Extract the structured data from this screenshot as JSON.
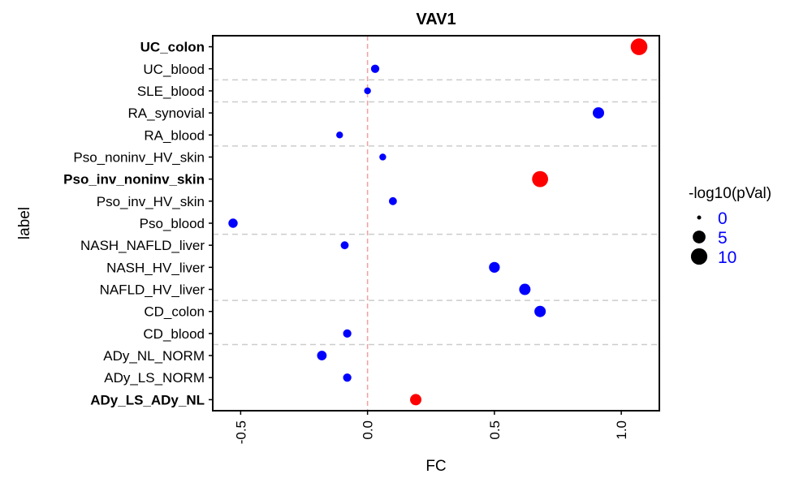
{
  "chart_data": {
    "type": "scatter",
    "title": "VAV1",
    "xlabel": "FC",
    "ylabel": "label",
    "xlim": [
      -0.61,
      1.15
    ],
    "xticks": [
      "-0.5",
      "0.0",
      "0.5",
      "1.0"
    ],
    "xtick_values": [
      -0.5,
      0.0,
      0.5,
      1.0
    ],
    "zero_line": 0,
    "grid": false,
    "points": [
      {
        "label": "UC_colon",
        "fc": 1.07,
        "neglog10p": 10.5,
        "significant": true
      },
      {
        "label": "UC_blood",
        "fc": 0.03,
        "neglog10p": 1.2,
        "significant": false
      },
      {
        "label": "SLE_blood",
        "fc": 0.0,
        "neglog10p": 0.5,
        "significant": false
      },
      {
        "label": "RA_synovial",
        "fc": 0.91,
        "neglog10p": 3.5,
        "significant": false
      },
      {
        "label": "RA_blood",
        "fc": -0.11,
        "neglog10p": 0.5,
        "significant": false
      },
      {
        "label": "Pso_noninv_HV_skin",
        "fc": 0.06,
        "neglog10p": 0.5,
        "significant": false
      },
      {
        "label": "Pso_inv_noninv_skin",
        "fc": 0.68,
        "neglog10p": 9.5,
        "significant": true
      },
      {
        "label": "Pso_inv_HV_skin",
        "fc": 0.1,
        "neglog10p": 1.0,
        "significant": false
      },
      {
        "label": "Pso_blood",
        "fc": -0.53,
        "neglog10p": 1.8,
        "significant": false
      },
      {
        "label": "NASH_NAFLD_liver",
        "fc": -0.09,
        "neglog10p": 1.0,
        "significant": false
      },
      {
        "label": "NASH_HV_liver",
        "fc": 0.5,
        "neglog10p": 3.0,
        "significant": false
      },
      {
        "label": "NAFLD_HV_liver",
        "fc": 0.62,
        "neglog10p": 3.5,
        "significant": false
      },
      {
        "label": "CD_colon",
        "fc": 0.68,
        "neglog10p": 3.5,
        "significant": false
      },
      {
        "label": "CD_blood",
        "fc": -0.08,
        "neglog10p": 1.2,
        "significant": false
      },
      {
        "label": "ADy_NL_NORM",
        "fc": -0.18,
        "neglog10p": 2.0,
        "significant": false
      },
      {
        "label": "ADy_LS_NORM",
        "fc": -0.08,
        "neglog10p": 1.2,
        "significant": false
      },
      {
        "label": "ADy_LS_ADy_NL",
        "fc": 0.19,
        "neglog10p": 3.5,
        "significant": true
      }
    ],
    "group_separators_after": [
      "UC_blood",
      "SLE_blood",
      "RA_blood",
      "Pso_blood",
      "NAFLD_HV_liver",
      "CD_blood"
    ],
    "colors": {
      "significant": "#ff0000",
      "not_significant": "#0000ff",
      "zero_line": "#f4a0a0",
      "separator": "#cccccc",
      "legend_label": "#0000ff"
    },
    "legend": {
      "title": "-log10(pVal)",
      "position": "right",
      "entries": [
        {
          "label": "0",
          "value": 0
        },
        {
          "label": "5",
          "value": 5
        },
        {
          "label": "10",
          "value": 10
        }
      ]
    }
  }
}
